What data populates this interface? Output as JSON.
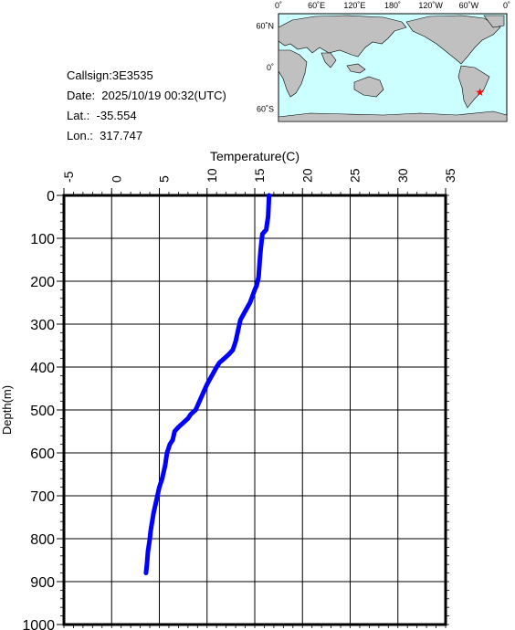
{
  "info": {
    "callsign": "Callsign:3E3535",
    "date": "Date:  2025/10/19 00:32(UTC)",
    "lat": "Lat.:  -35.554",
    "lon": "Lon.:  317.747"
  },
  "map": {
    "top_labels": [
      "0˚",
      "60˚E",
      "120˚E",
      "180˚",
      "120˚W",
      "60˚W",
      "0˚"
    ],
    "left_labels": [
      "60˚N",
      "0˚",
      "60˚S"
    ],
    "marker": {
      "lat": -35.554,
      "lon": 317.747,
      "symbol": "★"
    },
    "colors": {
      "ocean": "#ccffff",
      "land": "#c0c0c0",
      "marker": "#ff0000"
    }
  },
  "chart_data": {
    "type": "line",
    "xlabel": "Temperature(C)",
    "ylabel": "Depth(m)",
    "xlim": [
      -5,
      35
    ],
    "ylim": [
      0,
      1000
    ],
    "y_inverted": true,
    "x_axis_position": "top",
    "xticks": [
      "-5",
      "0",
      "5",
      "10",
      "15",
      "20",
      "25",
      "30",
      "35"
    ],
    "yticks": [
      "0",
      "100",
      "200",
      "300",
      "400",
      "500",
      "600",
      "700",
      "800",
      "900",
      "1000"
    ],
    "grid": true,
    "line_color": "#0000ff",
    "series": [
      {
        "temperature": [
          16.5,
          16.4,
          16.2,
          15.8,
          15.7,
          15.6,
          15.5,
          15.4,
          15.2,
          15.0,
          14.5,
          14.0,
          13.5,
          13.3,
          13.0,
          12.7,
          12.3,
          11.8,
          11.3,
          11.0,
          10.5,
          10.0,
          9.6,
          9.2,
          8.8,
          8.3,
          8.0,
          7.5,
          7.0,
          6.6,
          6.4,
          6.1,
          5.8,
          5.6,
          5.3,
          5.0,
          4.8,
          4.6,
          4.4,
          4.1,
          4.0,
          3.8,
          3.7,
          3.6
        ],
        "depth": [
          0,
          50,
          80,
          90,
          110,
          130,
          160,
          190,
          210,
          220,
          250,
          270,
          290,
          310,
          340,
          360,
          370,
          380,
          390,
          400,
          420,
          440,
          460,
          480,
          500,
          510,
          520,
          530,
          540,
          550,
          570,
          580,
          600,
          630,
          660,
          680,
          700,
          720,
          740,
          780,
          800,
          830,
          860,
          880
        ]
      }
    ]
  }
}
